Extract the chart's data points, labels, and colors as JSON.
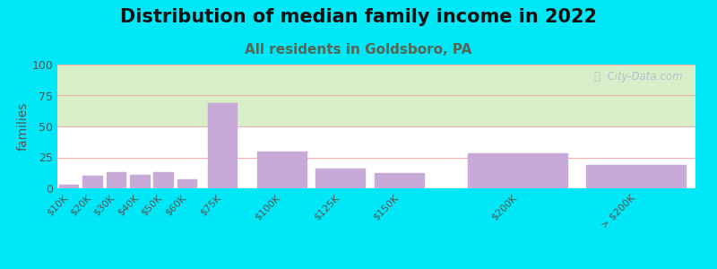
{
  "title": "Distribution of median family income in 2022",
  "subtitle": "All residents in Goldsboro, PA",
  "ylabel": "families",
  "categories": [
    "$10K",
    "$20K",
    "$30K",
    "$40K",
    "$50K",
    "$60K",
    "$75K",
    "$100K",
    "$125K",
    "$150K",
    "$200K",
    "> $200K"
  ],
  "x_positions": [
    10,
    20,
    30,
    40,
    50,
    60,
    75,
    100,
    125,
    150,
    200,
    250
  ],
  "x_widths": [
    10,
    10,
    10,
    10,
    10,
    10,
    15,
    25,
    25,
    25,
    50,
    50
  ],
  "values": [
    3,
    10,
    13,
    11,
    13,
    7,
    69,
    30,
    16,
    12,
    28,
    19
  ],
  "bar_color": "#c8aad8",
  "bar_edgecolor": "#c8aad8",
  "ylim": [
    0,
    100
  ],
  "yticks": [
    0,
    25,
    50,
    75,
    100
  ],
  "x_min": 5,
  "x_max": 275,
  "background_outer": "#00e8f8",
  "grad_top": "#d8eec8",
  "grad_bottom": "#ffffff",
  "grid_color": "#f0b0b0",
  "title_fontsize": 15,
  "subtitle_fontsize": 11,
  "ylabel_fontsize": 10,
  "tick_fontsize": 8,
  "watermark_text": "ⓘ  City-Data.com",
  "watermark_color": "#aabbcc",
  "subtitle_color": "#556655",
  "title_color": "#111111"
}
